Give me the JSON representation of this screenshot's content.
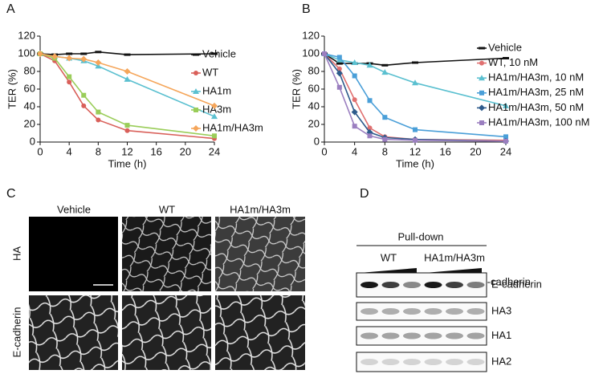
{
  "chart_data": [
    {
      "type": "line",
      "xlabel": "Time (h)",
      "ylabel": "TER (%)",
      "x": [
        0,
        2,
        4,
        6,
        8,
        12,
        24
      ],
      "xlim": [
        0,
        24
      ],
      "xticks": [
        0,
        4,
        8,
        12,
        16,
        20,
        24
      ],
      "ylim": [
        0,
        120
      ],
      "yticks": [
        0,
        20,
        40,
        60,
        80,
        100,
        120
      ],
      "series": [
        {
          "name": "Vehicle",
          "color": "#111111",
          "marker": "dash",
          "values": [
            100,
            99,
            100,
            100,
            102,
            99,
            100
          ]
        },
        {
          "name": "WT",
          "color": "#d9605a",
          "marker": "circle",
          "values": [
            100,
            92,
            68,
            41,
            25,
            13,
            4
          ]
        },
        {
          "name": "HA1m",
          "color": "#5bc0d0",
          "marker": "triangle",
          "values": [
            100,
            97,
            95,
            92,
            86,
            71,
            29
          ]
        },
        {
          "name": "HA3m",
          "color": "#9acd59",
          "marker": "square",
          "values": [
            100,
            95,
            74,
            53,
            34,
            19,
            7
          ]
        },
        {
          "name": "HA1m/HA3m",
          "color": "#f5a65b",
          "marker": "diamond",
          "values": [
            100,
            97,
            95,
            94,
            90,
            80,
            41
          ]
        }
      ]
    },
    {
      "type": "line",
      "xlabel": "Time (h)",
      "ylabel": "TER (%)",
      "x": [
        0,
        2,
        4,
        6,
        8,
        12,
        24
      ],
      "xlim": [
        0,
        24
      ],
      "xticks": [
        0,
        4,
        8,
        12,
        16,
        20,
        24
      ],
      "ylim": [
        0,
        120
      ],
      "yticks": [
        0,
        20,
        40,
        60,
        80,
        100,
        120
      ],
      "series": [
        {
          "name": "Vehicle",
          "color": "#111111",
          "marker": "dash",
          "values": [
            100,
            89,
            89,
            89,
            87,
            90,
            95
          ]
        },
        {
          "name": "WT, 10 nM",
          "color": "#e07070",
          "marker": "circle",
          "values": [
            100,
            83,
            48,
            16,
            6,
            3,
            2
          ]
        },
        {
          "name": "HA1m/HA3m, 10 nM",
          "color": "#5bc0d0",
          "marker": "triangle",
          "values": [
            100,
            93,
            90,
            87,
            79,
            67,
            41
          ]
        },
        {
          "name": "HA1m/HA3m, 25 nM",
          "color": "#4a9fd8",
          "marker": "square",
          "values": [
            100,
            96,
            75,
            47,
            28,
            14,
            6
          ]
        },
        {
          "name": "HA1m/HA3m, 50 nM",
          "color": "#2e5b8c",
          "marker": "diamond",
          "values": [
            100,
            78,
            34,
            11,
            5,
            3,
            1
          ]
        },
        {
          "name": "HA1m/HA3m, 100 nM",
          "color": "#9b7fc0",
          "marker": "square",
          "values": [
            100,
            62,
            18,
            7,
            3,
            2,
            1
          ]
        }
      ]
    }
  ],
  "panel_labels": [
    "A",
    "B",
    "C",
    "D"
  ],
  "microscopy": {
    "columns": [
      "Vehicle",
      "WT",
      "HA1m/HA3m"
    ],
    "rows": [
      "HA",
      "E-cadherin"
    ]
  },
  "blot": {
    "title": "Pull-down",
    "groups": [
      "WT",
      "HA1m/HA3m"
    ],
    "gradient_label": "E-cadherin",
    "rows": [
      "E-cadherin",
      "HA3",
      "HA1",
      "HA2"
    ]
  }
}
